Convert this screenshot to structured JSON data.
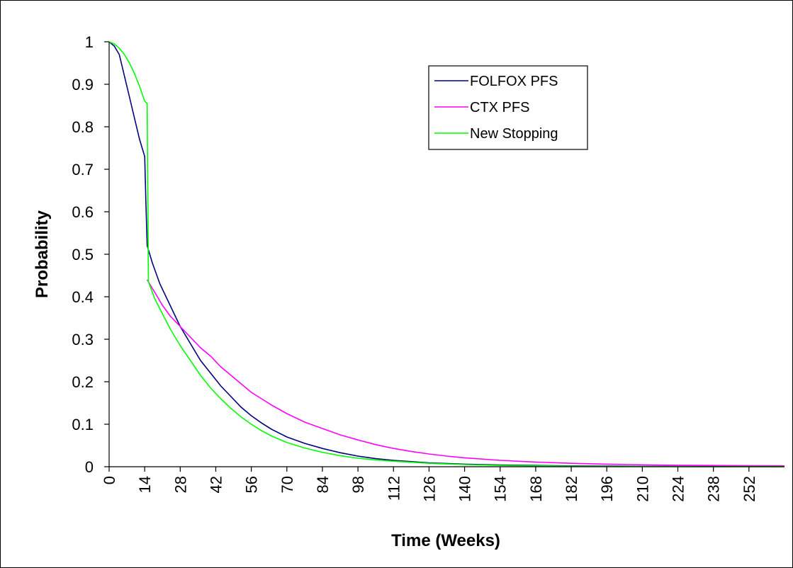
{
  "chart_data": {
    "type": "line",
    "xlabel": "Time (Weeks)",
    "ylabel": "Probability",
    "xlim": [
      0,
      266
    ],
    "ylim": [
      0,
      1
    ],
    "x_ticks": [
      0,
      14,
      28,
      42,
      56,
      70,
      84,
      98,
      112,
      126,
      140,
      154,
      168,
      182,
      196,
      210,
      224,
      238,
      252
    ],
    "y_ticks": [
      0,
      0.1,
      0.2,
      0.3,
      0.4,
      0.5,
      0.6,
      0.7,
      0.8,
      0.9,
      1
    ],
    "legend_position": "top-right",
    "grid": false,
    "series": [
      {
        "name": "FOLFOX PFS",
        "color": "#000080",
        "points": [
          [
            0,
            1
          ],
          [
            2,
            0.99
          ],
          [
            4,
            0.97
          ],
          [
            6,
            0.92
          ],
          [
            8,
            0.87
          ],
          [
            10,
            0.82
          ],
          [
            12,
            0.77
          ],
          [
            14,
            0.73
          ],
          [
            14.5,
            0.62
          ],
          [
            15,
            0.52
          ],
          [
            17,
            0.48
          ],
          [
            20,
            0.43
          ],
          [
            24,
            0.38
          ],
          [
            28,
            0.33
          ],
          [
            32,
            0.29
          ],
          [
            36,
            0.25
          ],
          [
            40,
            0.22
          ],
          [
            44,
            0.19
          ],
          [
            48,
            0.165
          ],
          [
            52,
            0.14
          ],
          [
            56,
            0.12
          ],
          [
            60,
            0.103
          ],
          [
            64,
            0.088
          ],
          [
            70,
            0.07
          ],
          [
            77,
            0.055
          ],
          [
            84,
            0.043
          ],
          [
            91,
            0.033
          ],
          [
            98,
            0.025
          ],
          [
            105,
            0.019
          ],
          [
            112,
            0.015
          ],
          [
            126,
            0.009
          ],
          [
            140,
            0.006
          ],
          [
            154,
            0.004
          ],
          [
            168,
            0.003
          ],
          [
            182,
            0.002
          ],
          [
            196,
            0.0015
          ],
          [
            210,
            0.001
          ],
          [
            224,
            0.0008
          ],
          [
            238,
            0.0006
          ],
          [
            252,
            0.0005
          ],
          [
            266,
            0.0004
          ]
        ]
      },
      {
        "name": "CTX PFS",
        "color": "#ff00ff",
        "points": [
          [
            15,
            0.44
          ],
          [
            18,
            0.41
          ],
          [
            21,
            0.38
          ],
          [
            24,
            0.355
          ],
          [
            28,
            0.33
          ],
          [
            32,
            0.305
          ],
          [
            36,
            0.28
          ],
          [
            40,
            0.26
          ],
          [
            44,
            0.235
          ],
          [
            48,
            0.215
          ],
          [
            52,
            0.195
          ],
          [
            56,
            0.175
          ],
          [
            60,
            0.16
          ],
          [
            64,
            0.145
          ],
          [
            70,
            0.125
          ],
          [
            77,
            0.105
          ],
          [
            84,
            0.09
          ],
          [
            91,
            0.075
          ],
          [
            98,
            0.063
          ],
          [
            105,
            0.052
          ],
          [
            112,
            0.043
          ],
          [
            119,
            0.036
          ],
          [
            126,
            0.03
          ],
          [
            133,
            0.025
          ],
          [
            140,
            0.021
          ],
          [
            154,
            0.015
          ],
          [
            168,
            0.011
          ],
          [
            182,
            0.008
          ],
          [
            196,
            0.006
          ],
          [
            210,
            0.0045
          ],
          [
            224,
            0.0035
          ],
          [
            238,
            0.003
          ],
          [
            252,
            0.0025
          ],
          [
            266,
            0.002
          ]
        ]
      },
      {
        "name": "New Stopping",
        "color": "#00ff00",
        "points": [
          [
            0,
            1
          ],
          [
            2,
            0.995
          ],
          [
            4,
            0.985
          ],
          [
            6,
            0.97
          ],
          [
            8,
            0.95
          ],
          [
            10,
            0.925
          ],
          [
            12,
            0.895
          ],
          [
            14,
            0.86
          ],
          [
            15,
            0.855
          ],
          [
            15.2,
            0.65
          ],
          [
            15.5,
            0.435
          ],
          [
            18,
            0.395
          ],
          [
            21,
            0.36
          ],
          [
            24,
            0.325
          ],
          [
            28,
            0.285
          ],
          [
            32,
            0.25
          ],
          [
            36,
            0.215
          ],
          [
            40,
            0.185
          ],
          [
            44,
            0.16
          ],
          [
            48,
            0.137
          ],
          [
            52,
            0.117
          ],
          [
            56,
            0.1
          ],
          [
            60,
            0.085
          ],
          [
            64,
            0.072
          ],
          [
            70,
            0.057
          ],
          [
            77,
            0.044
          ],
          [
            84,
            0.034
          ],
          [
            91,
            0.026
          ],
          [
            98,
            0.02
          ],
          [
            105,
            0.016
          ],
          [
            112,
            0.013
          ],
          [
            126,
            0.008
          ],
          [
            140,
            0.005
          ],
          [
            154,
            0.003
          ],
          [
            168,
            0.002
          ],
          [
            182,
            0.0012
          ],
          [
            196,
            0.0008
          ],
          [
            210,
            0.0005
          ],
          [
            224,
            0.0003
          ],
          [
            238,
            0.0002
          ],
          [
            252,
            0.0001
          ],
          [
            266,
            0.0001
          ]
        ]
      }
    ]
  }
}
